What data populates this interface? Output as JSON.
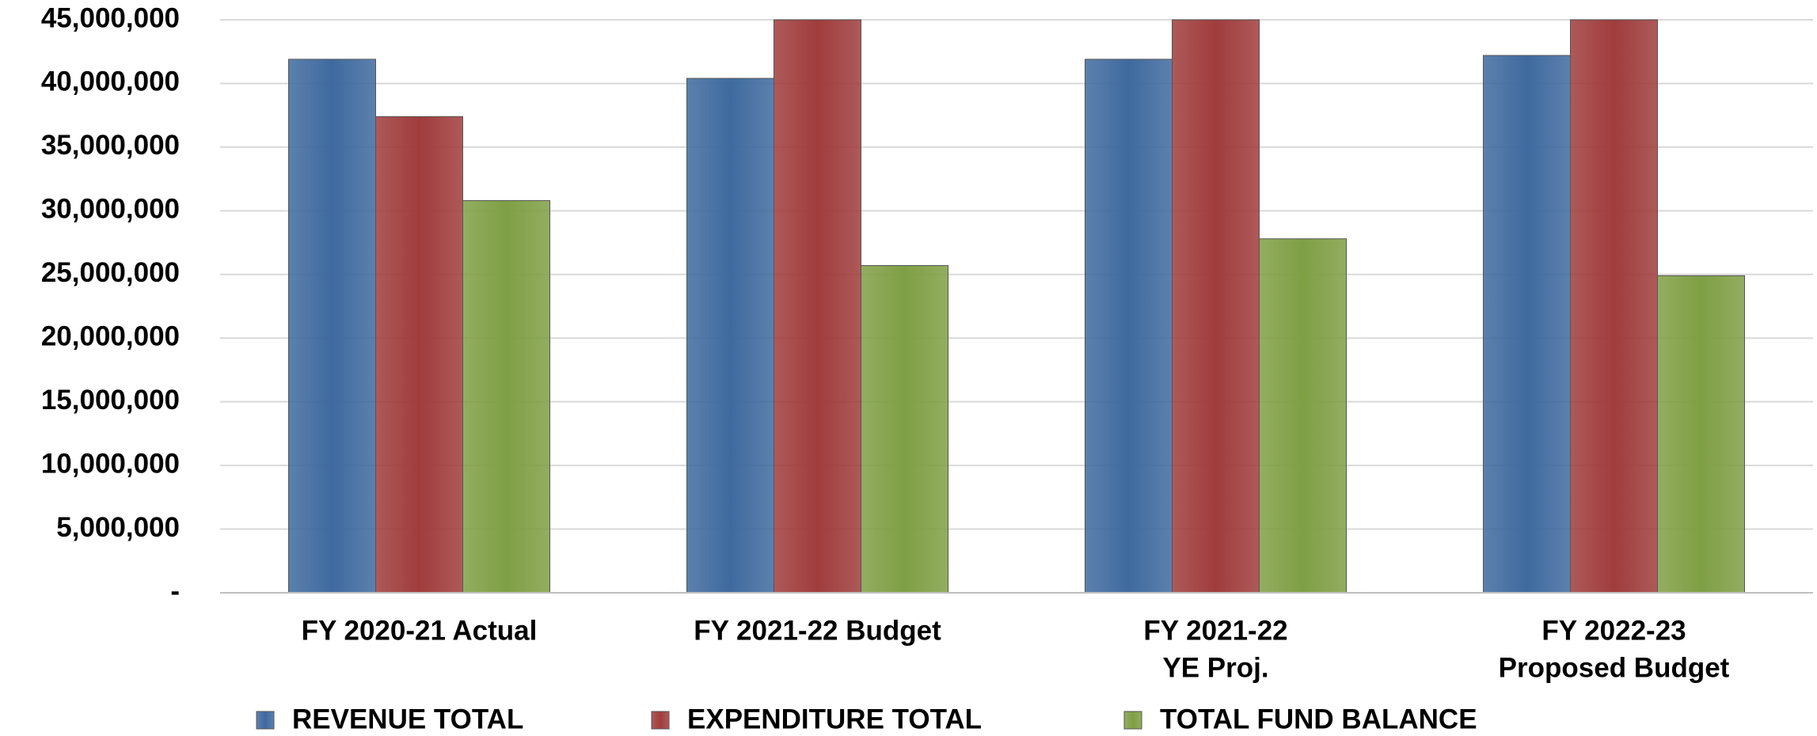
{
  "chart_data": {
    "type": "bar",
    "categories": [
      [
        "FY 2020-21 Actual"
      ],
      [
        "FY 2021-22 Budget"
      ],
      [
        "FY 2021-22",
        "YE Proj."
      ],
      [
        "FY 2022-23",
        "Proposed Budget"
      ]
    ],
    "series": [
      {
        "name": "REVENUE TOTAL",
        "color": "#3f6a9f",
        "values": [
          41900000,
          40400000,
          41900000,
          42200000
        ]
      },
      {
        "name": "EXPENDITURE TOTAL",
        "color": "#a03c3c",
        "values": [
          37400000,
          45000000,
          45000000,
          45000000
        ]
      },
      {
        "name": "TOTAL FUND BALANCE",
        "color": "#7f9f45",
        "values": [
          30800000,
          25700000,
          27800000,
          24900000
        ]
      }
    ],
    "ylim": [
      0,
      45000000
    ],
    "yticks": [
      {
        "value": 0,
        "label": "-"
      },
      {
        "value": 5000000,
        "label": "5,000,000"
      },
      {
        "value": 10000000,
        "label": "10,000,000"
      },
      {
        "value": 15000000,
        "label": "15,000,000"
      },
      {
        "value": 20000000,
        "label": "20,000,000"
      },
      {
        "value": 25000000,
        "label": "25,000,000"
      },
      {
        "value": 30000000,
        "label": "30,000,000"
      },
      {
        "value": 35000000,
        "label": "35,000,000"
      },
      {
        "value": 40000000,
        "label": "40,000,000"
      },
      {
        "value": 45000000,
        "label": "45,000,000"
      }
    ],
    "grid": true,
    "legend": "bottom"
  }
}
